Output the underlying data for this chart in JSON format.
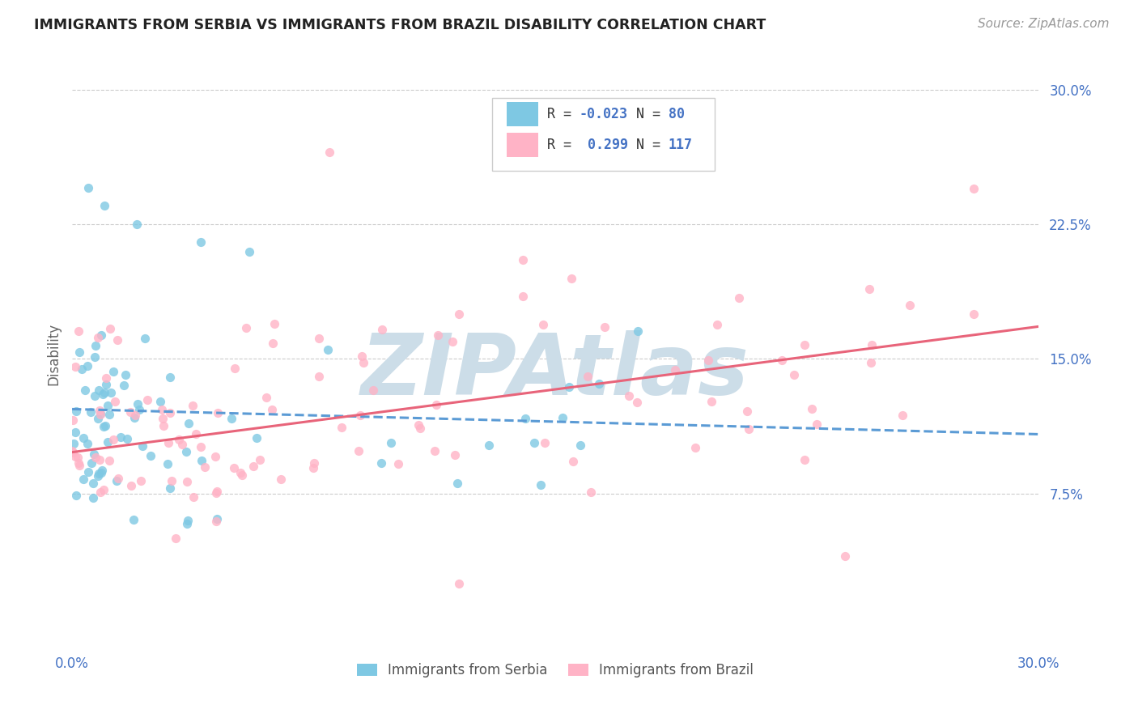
{
  "title": "IMMIGRANTS FROM SERBIA VS IMMIGRANTS FROM BRAZIL DISABILITY CORRELATION CHART",
  "source_text": "Source: ZipAtlas.com",
  "ylabel": "Disability",
  "xlim": [
    0.0,
    0.3
  ],
  "ylim": [
    -0.01,
    0.315
  ],
  "xtick_labels": [
    "0.0%",
    "30.0%"
  ],
  "ytick_labels": [
    "7.5%",
    "15.0%",
    "22.5%",
    "30.0%"
  ],
  "ytick_values": [
    0.075,
    0.15,
    0.225,
    0.3
  ],
  "legend_entries": [
    {
      "label": "Immigrants from Serbia",
      "color": "#7ec8e3",
      "R": "-0.023",
      "N": "80"
    },
    {
      "label": "Immigrants from Brazil",
      "color": "#ffb3c6",
      "R": " 0.299",
      "N": "117"
    }
  ],
  "serbia_color": "#7ec8e3",
  "brazil_color": "#ffb3c6",
  "serbia_trend_color": "#5b9bd5",
  "brazil_trend_color": "#e8647a",
  "watermark_color": "#ccdde8",
  "serbia_trend_start_y": 0.122,
  "serbia_trend_end_y": 0.108,
  "brazil_trend_start_y": 0.098,
  "brazil_trend_end_y": 0.168
}
